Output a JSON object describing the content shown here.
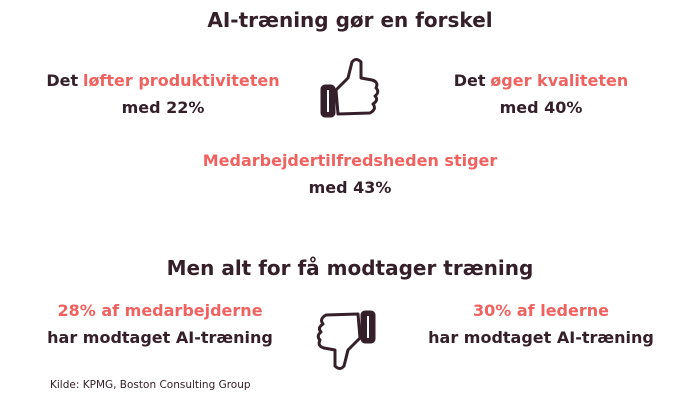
{
  "title": "AI-træning gør en forskel",
  "sections": [
    {
      "stats": [
        {
          "prefix": "Det",
          "highlight": "løfter produktiviteten",
          "detail": "med 22%"
        },
        {
          "prefix": "Det",
          "highlight": "øger kvaliteten",
          "detail": "med 40%"
        },
        {
          "highlight": "Medarbejdertilfredsheden stiger",
          "detail": "med 43%"
        }
      ]
    },
    {
      "title": "Men alt for få modtager træning",
      "stats": [
        {
          "highlight": "28% af medarbejderne",
          "detail": "har modtaget AI-træning"
        },
        {
          "highlight": "30% af lederne",
          "detail": "har modtaget AI-træning"
        }
      ]
    }
  ],
  "source": "Kilde: KPMG, Boston Consulting Group"
}
